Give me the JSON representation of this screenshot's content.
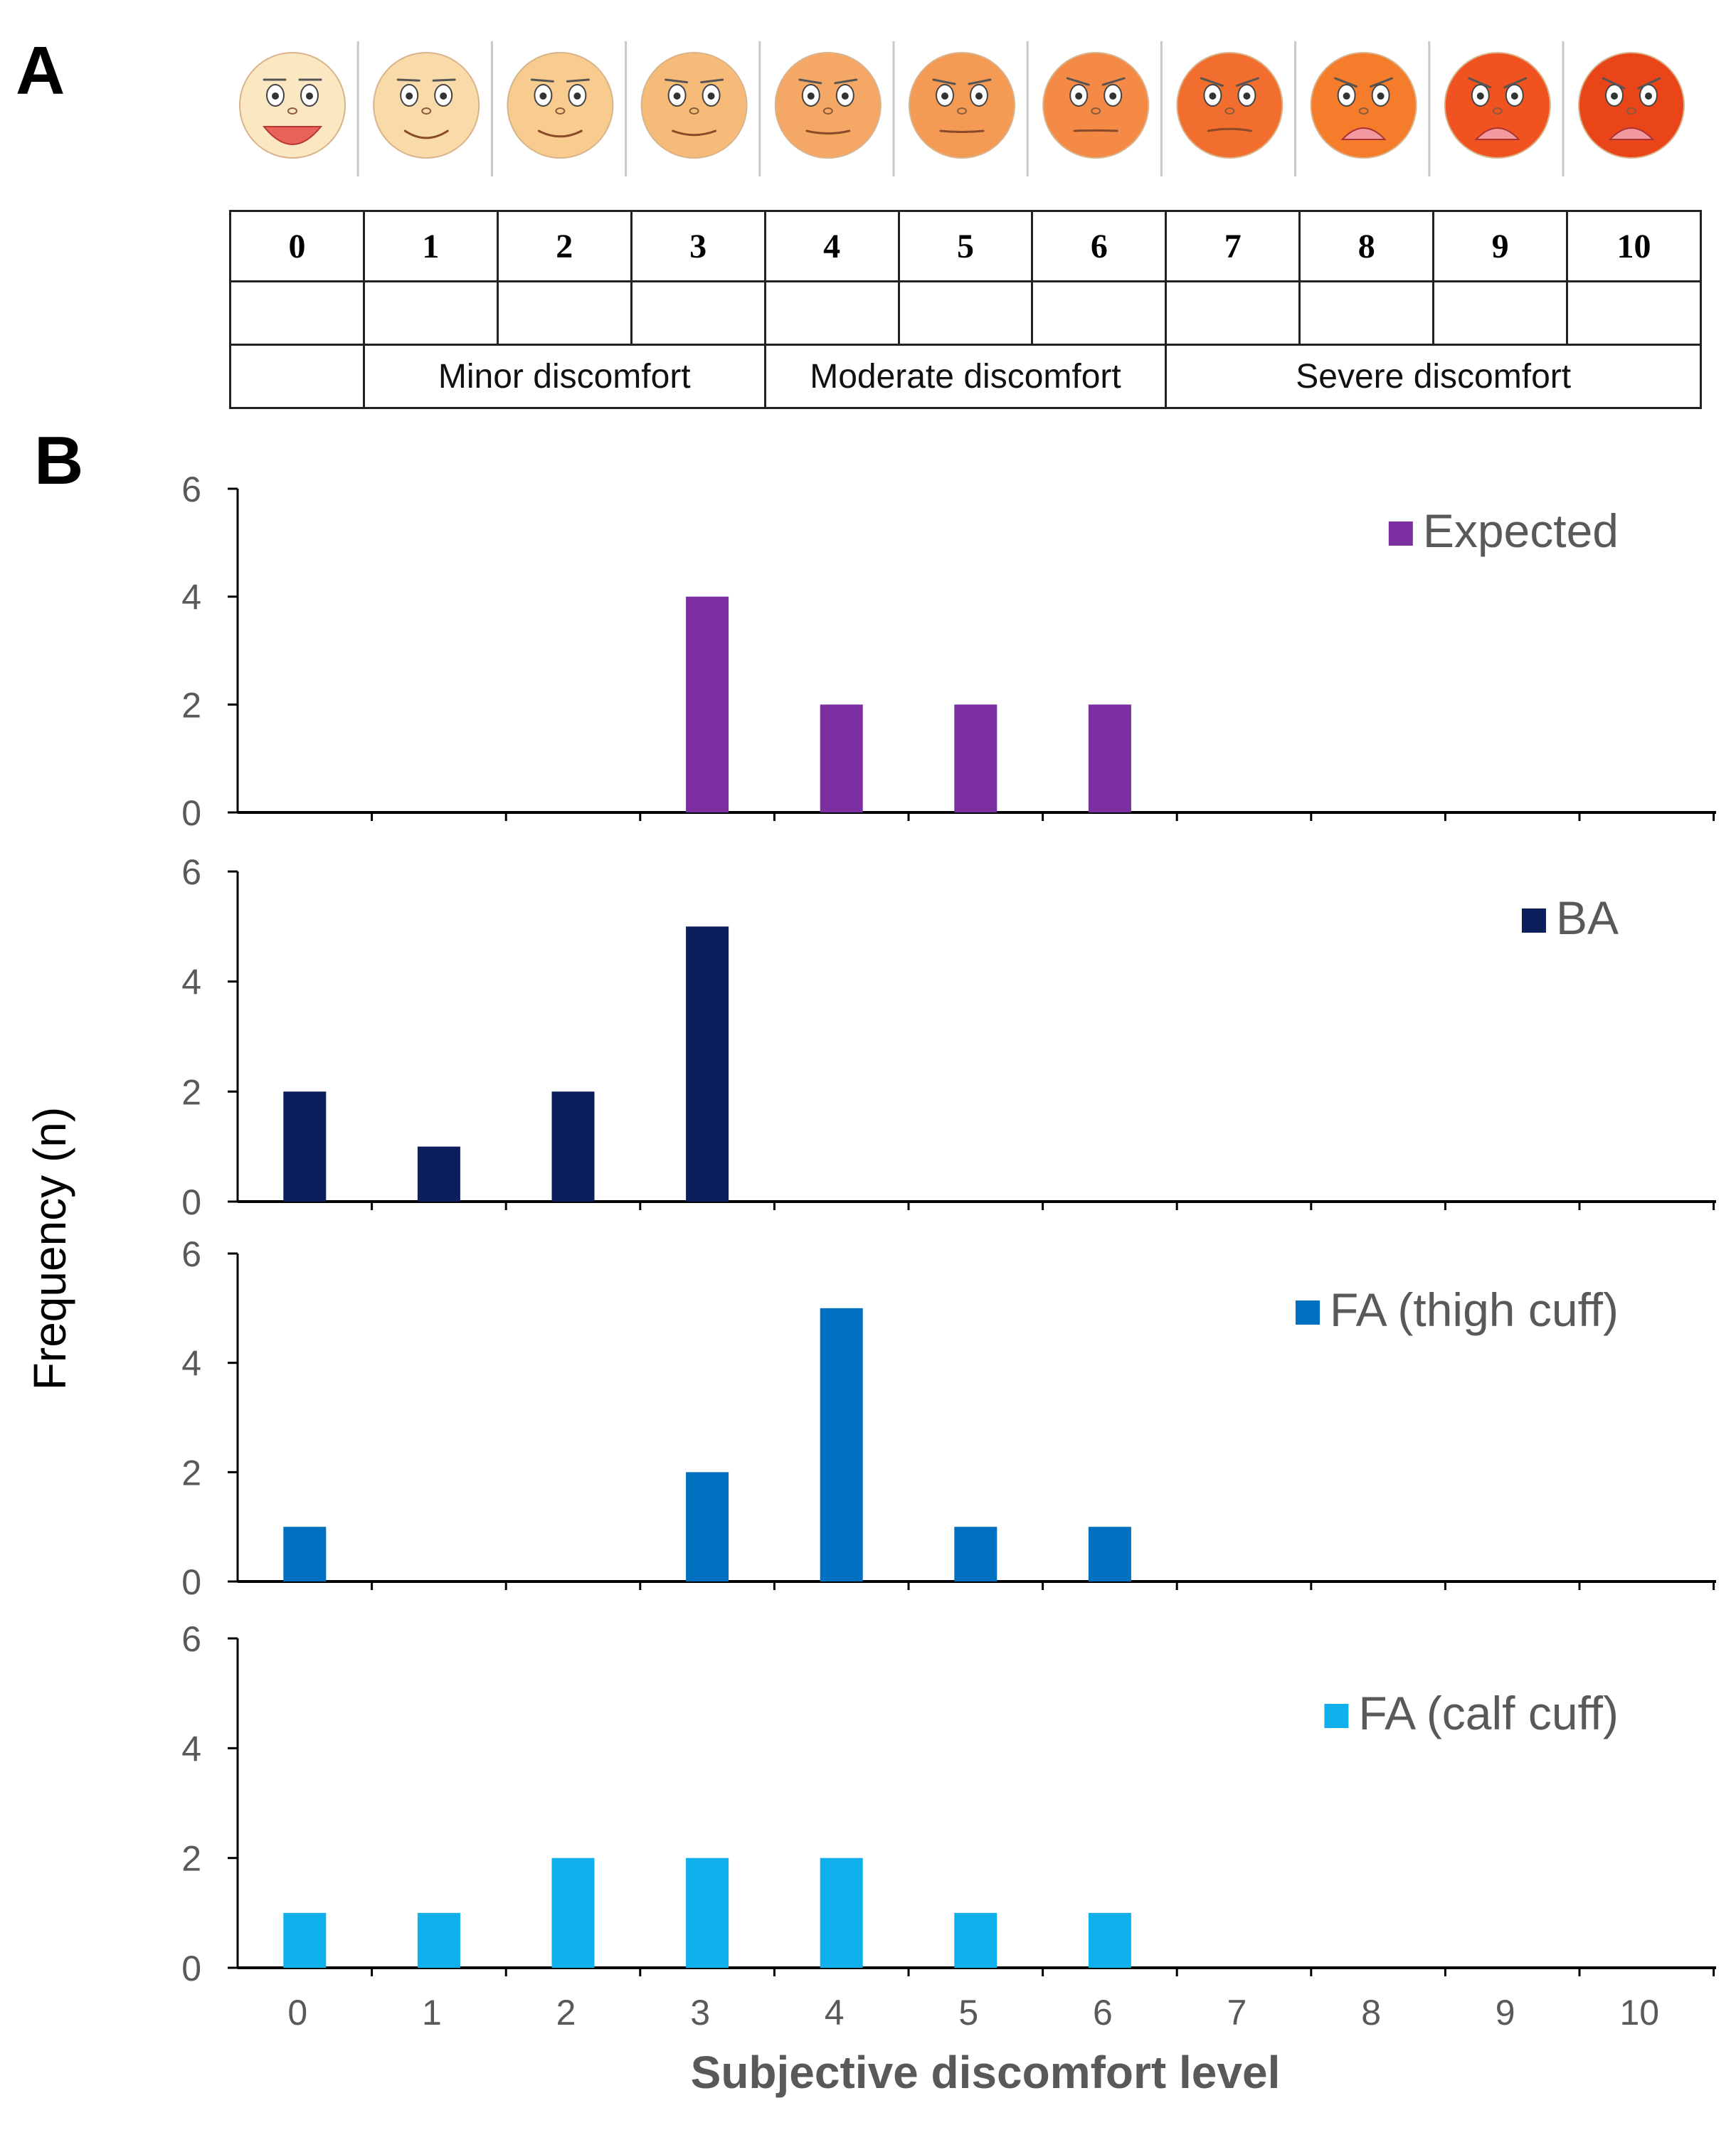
{
  "panel_labels": {
    "a": "A",
    "b": "B"
  },
  "scale": {
    "levels": [
      "0",
      "1",
      "2",
      "3",
      "4",
      "5",
      "6",
      "7",
      "8",
      "9",
      "10"
    ],
    "categories": [
      {
        "label": "Minor discomfort",
        "from": 1,
        "to": 3
      },
      {
        "label": "Moderate discomfort",
        "from": 4,
        "to": 6
      },
      {
        "label": "Severe discomfort",
        "from": 7,
        "to": 10
      }
    ],
    "face_colors": [
      "#fbe7c2",
      "#f9dbaa",
      "#f8cb8e",
      "#f6bb78",
      "#f5a866",
      "#f49a55",
      "#f48a45",
      "#f26e2e",
      "#f47c2a",
      "#f0531f",
      "#ea4419"
    ]
  },
  "chart_data": [
    {
      "type": "bar",
      "title": "",
      "legend": "Expected",
      "legend_position": "top-right",
      "color": "#7b2fa0",
      "categories": [
        "0",
        "1",
        "2",
        "3",
        "4",
        "5",
        "6",
        "7",
        "8",
        "9",
        "10"
      ],
      "values": [
        0,
        0,
        0,
        4,
        2,
        2,
        2,
        0,
        0,
        0,
        0
      ],
      "yticks": [
        "0",
        "2",
        "4",
        "6"
      ],
      "ylim": [
        0,
        6
      ]
    },
    {
      "type": "bar",
      "title": "",
      "legend": "BA",
      "legend_position": "top-right",
      "color": "#0c1f5c",
      "categories": [
        "0",
        "1",
        "2",
        "3",
        "4",
        "5",
        "6",
        "7",
        "8",
        "9",
        "10"
      ],
      "values": [
        2,
        1,
        2,
        5,
        0,
        0,
        0,
        0,
        0,
        0,
        0
      ],
      "yticks": [
        "0",
        "2",
        "4",
        "6"
      ],
      "ylim": [
        0,
        6
      ]
    },
    {
      "type": "bar",
      "title": "",
      "legend": "FA (thigh cuff)",
      "legend_position": "top-right",
      "color": "#0070c0",
      "categories": [
        "0",
        "1",
        "2",
        "3",
        "4",
        "5",
        "6",
        "7",
        "8",
        "9",
        "10"
      ],
      "values": [
        1,
        0,
        0,
        2,
        5,
        1,
        1,
        0,
        0,
        0,
        0
      ],
      "yticks": [
        "0",
        "2",
        "4",
        "6"
      ],
      "ylim": [
        0,
        6
      ]
    },
    {
      "type": "bar",
      "title": "",
      "legend": "FA (calf cuff)",
      "legend_position": "top-right",
      "color": "#0fb0ec",
      "categories": [
        "0",
        "1",
        "2",
        "3",
        "4",
        "5",
        "6",
        "7",
        "8",
        "9",
        "10"
      ],
      "values": [
        1,
        1,
        2,
        2,
        2,
        1,
        1,
        0,
        0,
        0,
        0
      ],
      "yticks": [
        "0",
        "2",
        "4",
        "6"
      ],
      "ylim": [
        0,
        6
      ]
    }
  ],
  "axes": {
    "ylabel": "Frequency (n)",
    "xlabel": "Subjective discomfort level",
    "xticks": [
      "0",
      "1",
      "2",
      "3",
      "4",
      "5",
      "6",
      "7",
      "8",
      "9",
      "10"
    ]
  }
}
